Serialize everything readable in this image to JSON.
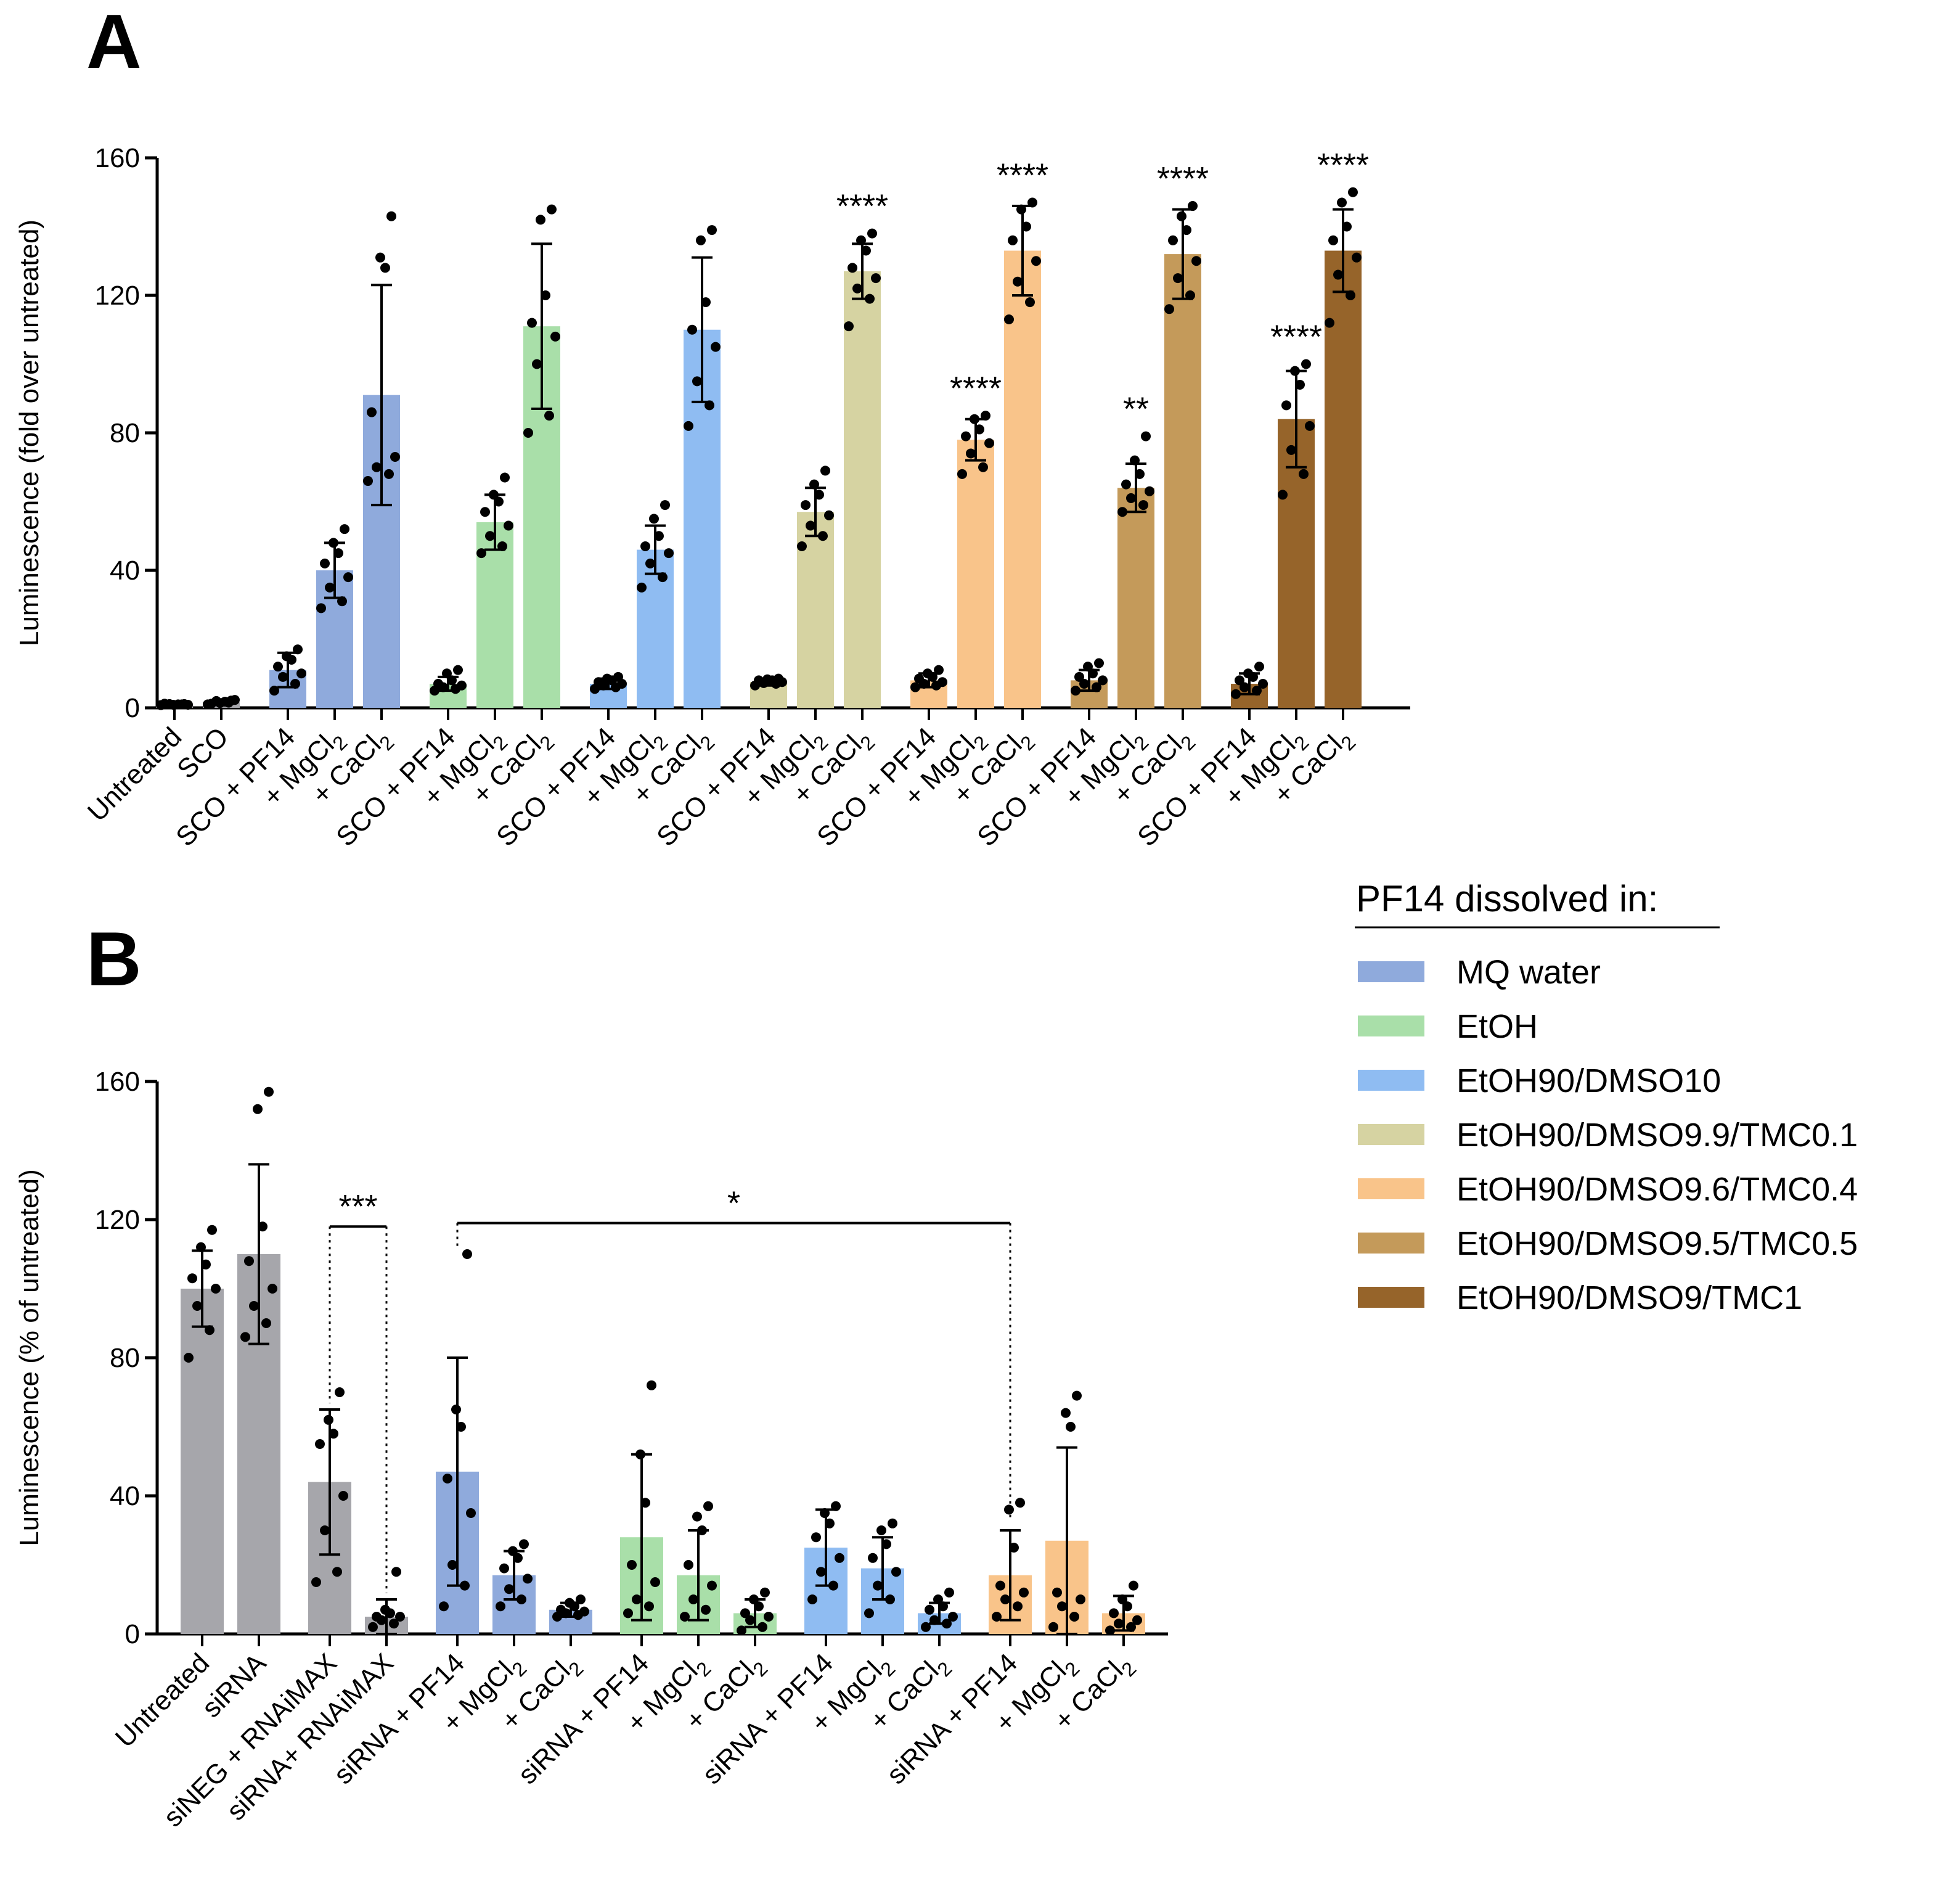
{
  "colors": {
    "grey": "#a6a6ab",
    "MQ water": "#8faadc",
    "EtOH": "#a9dfa9",
    "EtOH90/DMSO10": "#8fbcf2",
    "EtOH90/DMSO9.9/TMC0.1": "#d6d3a2",
    "EtOH90/DMSO9.6/TMC0.4": "#f9c48a",
    "EtOH90/DMSO9.5/TMC0.5": "#c49a5a",
    "EtOH90/DMSO9/TMC1": "#96642a"
  },
  "legend": {
    "title": "PF14 dissolved in:",
    "items": [
      {
        "label": "MQ water",
        "color": "#8faadc"
      },
      {
        "label": "EtOH",
        "color": "#a9dfa9"
      },
      {
        "label": "EtOH90/DMSO10",
        "color": "#8fbcf2"
      },
      {
        "label": "EtOH90/DMSO9.9/TMC0.1",
        "color": "#d6d3a2"
      },
      {
        "label": "EtOH90/DMSO9.6/TMC0.4",
        "color": "#f9c48a"
      },
      {
        "label": "EtOH90/DMSO9.5/TMC0.5",
        "color": "#c49a5a"
      },
      {
        "label": "EtOH90/DMSO9/TMC1",
        "color": "#96642a"
      }
    ]
  },
  "chart_data": [
    {
      "panel": "A",
      "type": "bar",
      "ylabel": "Luminescence (fold over untreated)",
      "ylim": [
        0,
        160
      ],
      "yticks": [
        0,
        40,
        80,
        120,
        160
      ],
      "bars": [
        {
          "label": "Untreated",
          "group": "grey",
          "mean": 1,
          "sd": 0.3,
          "points": [
            0.8,
            1,
            1.1,
            0.9,
            1.2,
            1,
            0.9,
            1.1
          ],
          "sig": ""
        },
        {
          "label": "SCO",
          "group": "grey",
          "mean": 1.6,
          "sd": 0.6,
          "points": [
            1,
            1.5,
            2,
            2.3,
            1.2,
            1.8,
            1.4,
            2.1
          ],
          "sig": ""
        },
        {
          "label": "SCO + PF14",
          "group": "MQ water",
          "mean": 11,
          "sd": 5,
          "points": [
            5,
            7,
            9,
            10,
            12,
            14,
            15,
            17
          ],
          "sig": ""
        },
        {
          "label": "+ MgCl2",
          "group": "MQ water",
          "mean": 40,
          "sd": 8,
          "points": [
            29,
            31,
            35,
            38,
            42,
            45,
            48,
            52
          ],
          "sig": ""
        },
        {
          "label": "+ CaCl2",
          "group": "MQ water",
          "mean": 91,
          "sd": 32,
          "points": [
            66,
            68,
            70,
            73,
            86,
            128,
            131,
            143
          ],
          "sig": ""
        },
        {
          "label": "SCO + PF14",
          "group": "EtOH",
          "mean": 7,
          "sd": 2,
          "points": [
            5,
            5.5,
            6,
            6.5,
            7,
            8,
            10,
            11
          ],
          "sig": ""
        },
        {
          "label": "+ MgCl2",
          "group": "EtOH",
          "mean": 54,
          "sd": 8,
          "points": [
            45,
            47,
            50,
            53,
            57,
            60,
            62,
            67
          ],
          "sig": ""
        },
        {
          "label": "+ CaCl2",
          "group": "EtOH",
          "mean": 111,
          "sd": 24,
          "points": [
            80,
            85,
            100,
            108,
            112,
            120,
            142,
            145
          ],
          "sig": ""
        },
        {
          "label": "SCO + PF14",
          "group": "EtOH90/DMSO10",
          "mean": 7,
          "sd": 1.5,
          "points": [
            5.5,
            6,
            6.5,
            7,
            7.5,
            8,
            8.5,
            9
          ],
          "sig": ""
        },
        {
          "label": "+ MgCl2",
          "group": "EtOH90/DMSO10",
          "mean": 46,
          "sd": 7,
          "points": [
            35,
            38,
            42,
            45,
            47,
            50,
            55,
            59
          ],
          "sig": ""
        },
        {
          "label": "+ CaCl2",
          "group": "EtOH90/DMSO10",
          "mean": 110,
          "sd": 21,
          "points": [
            82,
            88,
            95,
            105,
            110,
            118,
            136,
            139
          ],
          "sig": ""
        },
        {
          "label": "SCO + PF14",
          "group": "EtOH90/DMSO9.9/TMC0.1",
          "mean": 7.5,
          "sd": 1,
          "points": [
            6.5,
            7,
            7.2,
            7.5,
            8,
            8,
            8.3,
            8.5
          ],
          "sig": ""
        },
        {
          "label": "+ MgCl2",
          "group": "EtOH90/DMSO9.9/TMC0.1",
          "mean": 57,
          "sd": 7,
          "points": [
            47,
            50,
            53,
            56,
            59,
            62,
            65,
            69
          ],
          "sig": ""
        },
        {
          "label": "+ CaCl2",
          "group": "EtOH90/DMSO9.9/TMC0.1",
          "mean": 127,
          "sd": 8,
          "points": [
            111,
            119,
            122,
            125,
            128,
            133,
            136,
            138
          ],
          "sig": "****"
        },
        {
          "label": "SCO + PF14",
          "group": "EtOH90/DMSO9.6/TMC0.4",
          "mean": 8,
          "sd": 2,
          "points": [
            6,
            6.5,
            7,
            7.5,
            8.5,
            9,
            10,
            11
          ],
          "sig": ""
        },
        {
          "label": "+ MgCl2",
          "group": "EtOH90/DMSO9.6/TMC0.4",
          "mean": 78,
          "sd": 6,
          "points": [
            68,
            70,
            74,
            77,
            79,
            81,
            84,
            85
          ],
          "sig": "****"
        },
        {
          "label": "+ CaCl2",
          "group": "EtOH90/DMSO9.6/TMC0.4",
          "mean": 133,
          "sd": 13,
          "points": [
            113,
            118,
            124,
            130,
            136,
            140,
            145,
            147
          ],
          "sig": "****"
        },
        {
          "label": "SCO + PF14",
          "group": "EtOH90/DMSO9.5/TMC0.5",
          "mean": 8,
          "sd": 3,
          "points": [
            5,
            6,
            7,
            8,
            9,
            10,
            12,
            13
          ],
          "sig": ""
        },
        {
          "label": "+ MgCl2",
          "group": "EtOH90/DMSO9.5/TMC0.5",
          "mean": 64,
          "sd": 7,
          "points": [
            57,
            59,
            61,
            63,
            65,
            68,
            72,
            79
          ],
          "sig": "**"
        },
        {
          "label": "+ CaCl2",
          "group": "EtOH90/DMSO9.5/TMC0.5",
          "mean": 132,
          "sd": 13,
          "points": [
            116,
            120,
            125,
            130,
            136,
            139,
            143,
            146
          ],
          "sig": "****"
        },
        {
          "label": "SCO + PF14",
          "group": "EtOH90/DMSO9/TMC1",
          "mean": 7,
          "sd": 3,
          "points": [
            4,
            5,
            6,
            7,
            8,
            9,
            10,
            12
          ],
          "sig": ""
        },
        {
          "label": "+ MgCl2",
          "group": "EtOH90/DMSO9/TMC1",
          "mean": 84,
          "sd": 14,
          "points": [
            62,
            68,
            75,
            82,
            88,
            94,
            98,
            100
          ],
          "sig": "****"
        },
        {
          "label": "+ CaCl2",
          "group": "EtOH90/DMSO9/TMC1",
          "mean": 133,
          "sd": 12,
          "points": [
            112,
            120,
            126,
            131,
            136,
            140,
            147,
            150
          ],
          "sig": "****"
        }
      ]
    },
    {
      "panel": "B",
      "type": "bar",
      "ylabel": "Luminescence (% of untreated)",
      "ylim": [
        0,
        160
      ],
      "yticks": [
        0,
        40,
        80,
        120,
        160
      ],
      "bars": [
        {
          "label": "Untreated",
          "group": "grey",
          "mean": 100,
          "sd": 11,
          "points": [
            80,
            88,
            95,
            100,
            103,
            107,
            112,
            117
          ],
          "sig": ""
        },
        {
          "label": "siRNA",
          "group": "grey",
          "mean": 110,
          "sd": 26,
          "points": [
            86,
            90,
            95,
            100,
            108,
            118,
            152,
            157
          ],
          "sig": ""
        },
        {
          "label": "siNEG + RNAiMAX",
          "group": "grey",
          "mean": 44,
          "sd": 21,
          "points": [
            15,
            18,
            30,
            40,
            55,
            58,
            62,
            70
          ],
          "sig": ""
        },
        {
          "label": "siRNA+ RNAiMAX",
          "group": "grey",
          "mean": 5,
          "sd": 5,
          "points": [
            2,
            3,
            4,
            5,
            5,
            6,
            7,
            18
          ],
          "sig": ""
        },
        {
          "label": "siRNA + PF14",
          "group": "MQ water",
          "mean": 47,
          "sd": 33,
          "points": [
            8,
            14,
            20,
            35,
            45,
            60,
            65,
            110
          ],
          "sig": ""
        },
        {
          "label": "+ MgCl2",
          "group": "MQ water",
          "mean": 17,
          "sd": 7,
          "points": [
            8,
            10,
            13,
            16,
            19,
            22,
            24,
            26
          ],
          "sig": ""
        },
        {
          "label": "+ CaCl2",
          "group": "MQ water",
          "mean": 7,
          "sd": 2,
          "points": [
            5,
            5.5,
            6,
            6.5,
            7,
            8,
            9,
            10
          ],
          "sig": ""
        },
        {
          "label": "siRNA + PF14",
          "group": "EtOH",
          "mean": 28,
          "sd": 24,
          "points": [
            6,
            8,
            10,
            15,
            20,
            38,
            52,
            72
          ],
          "sig": ""
        },
        {
          "label": "+ MgCl2",
          "group": "EtOH",
          "mean": 17,
          "sd": 13,
          "points": [
            5,
            7,
            10,
            14,
            20,
            30,
            34,
            37
          ],
          "sig": ""
        },
        {
          "label": "+ CaCl2",
          "group": "EtOH",
          "mean": 6,
          "sd": 4,
          "points": [
            1,
            2,
            4,
            5,
            6,
            8,
            10,
            12
          ],
          "sig": ""
        },
        {
          "label": "siRNA + PF14",
          "group": "EtOH90/DMSO10",
          "mean": 25,
          "sd": 11,
          "points": [
            10,
            14,
            18,
            22,
            28,
            32,
            35,
            37
          ],
          "sig": ""
        },
        {
          "label": "+ MgCl2",
          "group": "EtOH90/DMSO10",
          "mean": 19,
          "sd": 9,
          "points": [
            6,
            10,
            14,
            18,
            22,
            26,
            30,
            32
          ],
          "sig": ""
        },
        {
          "label": "+ CaCl2",
          "group": "EtOH90/DMSO10",
          "mean": 6,
          "sd": 3,
          "points": [
            2,
            3,
            4,
            5,
            7,
            8,
            10,
            12
          ],
          "sig": ""
        },
        {
          "label": "siRNA + PF14",
          "group": "EtOH90/DMSO9.6/TMC0.4",
          "mean": 17,
          "sd": 13,
          "points": [
            5,
            8,
            10,
            12,
            14,
            25,
            36,
            38
          ],
          "sig": ""
        },
        {
          "label": "+ MgCl2",
          "group": "EtOH90/DMSO9.6/TMC0.4",
          "mean": 27,
          "sd": 27,
          "points": [
            2,
            5,
            8,
            10,
            12,
            60,
            64,
            69
          ],
          "sig": ""
        },
        {
          "label": "+ CaCl2",
          "group": "EtOH90/DMSO9.6/TMC0.4",
          "mean": 6,
          "sd": 5,
          "points": [
            1,
            2,
            3,
            4,
            6,
            8,
            10,
            14
          ],
          "sig": ""
        }
      ],
      "comparisons": [
        {
          "from_bar": 2,
          "to_bar": 3,
          "label": "***"
        },
        {
          "from_bar": 4,
          "to_bar": 13,
          "label": "*"
        }
      ]
    }
  ],
  "panel_letters": {
    "a": "A",
    "b": "B"
  }
}
